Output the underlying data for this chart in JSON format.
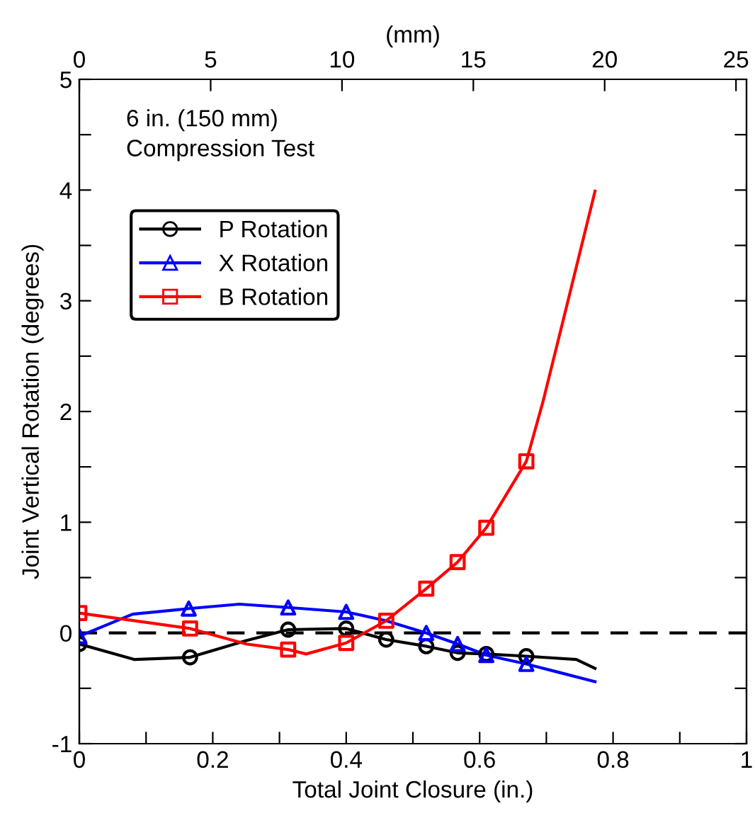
{
  "chart_data": {
    "type": "line",
    "xlabel": "Total Joint Closure (in.)",
    "ylabel": "Joint Vertical Rotation (degrees)",
    "x2label": "(mm)",
    "annotations": [
      "6 in. (150 mm)",
      "Compression Test"
    ],
    "xlim": [
      0,
      1
    ],
    "ylim": [
      -1,
      5
    ],
    "x2lim": [
      0,
      25.4
    ],
    "xticks": [
      0,
      {
        "value": 0.1,
        "label": null
      },
      0.2,
      {
        "value": 0.3,
        "label": null
      },
      0.4,
      {
        "value": 0.5,
        "label": null
      },
      0.6,
      {
        "value": 0.7,
        "label": null
      },
      0.8,
      {
        "value": 0.9,
        "label": null
      },
      1
    ],
    "yticks": [
      -1,
      {
        "value": -0.5,
        "label": null
      },
      0,
      {
        "value": 0.5,
        "label": null
      },
      1,
      {
        "value": 1.5,
        "label": null
      },
      2,
      {
        "value": 2.5,
        "label": null
      },
      3,
      {
        "value": 3.5,
        "label": null
      },
      4,
      {
        "value": 4.5,
        "label": null
      },
      5
    ],
    "x2ticks": [
      0,
      5,
      10,
      15,
      20,
      25
    ],
    "ref_lines": [
      {
        "axis": "y",
        "value": 0,
        "color": "#000000",
        "line_style": "dashed"
      }
    ],
    "grid": false,
    "legend": "top left",
    "series": [
      {
        "color": "#000000",
        "x": [
          0,
          0.083,
          0.166,
          0.25,
          0.313,
          0.4,
          0.46,
          0.52,
          0.567,
          0.61,
          0.67,
          0.745,
          0.773
        ],
        "values": [
          -0.1,
          -0.24,
          -0.22,
          -0.07,
          0.03,
          0.04,
          -0.06,
          -0.12,
          -0.18,
          -0.19,
          -0.21,
          -0.24,
          -0.32
        ]
      },
      {
        "color": "#0000ff",
        "x": [
          0,
          0.08,
          0.164,
          0.24,
          0.313,
          0.4,
          0.46,
          0.52,
          0.567,
          0.61,
          0.67,
          0.715,
          0.773
        ],
        "values": [
          -0.03,
          0.17,
          0.22,
          0.26,
          0.23,
          0.19,
          0.11,
          0.0,
          -0.1,
          -0.2,
          -0.28,
          -0.35,
          -0.44
        ]
      },
      {
        "color": "#ff0000",
        "x": [
          0,
          0.166,
          0.25,
          0.313,
          0.34,
          0.4,
          0.46,
          0.52,
          0.567,
          0.61,
          0.67,
          0.695,
          0.73,
          0.773
        ],
        "values": [
          0.18,
          0.04,
          -0.1,
          -0.15,
          -0.19,
          -0.09,
          0.11,
          0.4,
          0.64,
          0.95,
          1.55,
          2.09,
          2.94,
          3.99
        ]
      },
      {
        "type": "scatter",
        "name": "P Rotation",
        "color": "#000000",
        "marker": "circle",
        "x": [
          0,
          0.166,
          0.313,
          0.4,
          0.46,
          0.52,
          0.567,
          0.61,
          0.67
        ],
        "values": [
          -0.1,
          -0.22,
          0.03,
          0.04,
          -0.06,
          -0.12,
          -0.18,
          -0.19,
          -0.21
        ]
      },
      {
        "type": "scatter",
        "name": "X Rotation",
        "color": "#0000ff",
        "marker": "triangle",
        "x": [
          0,
          0.164,
          0.313,
          0.4,
          0.52,
          0.567,
          0.61,
          0.67
        ],
        "values": [
          -0.03,
          0.22,
          0.23,
          0.19,
          0.0,
          -0.1,
          -0.2,
          -0.28
        ]
      },
      {
        "type": "scatter",
        "name": "B Rotation",
        "color": "#ff0000",
        "marker": "square",
        "x": [
          0,
          0.166,
          0.313,
          0.4,
          0.46,
          0.52,
          0.567,
          0.61,
          0.67
        ],
        "values": [
          0.18,
          0.04,
          -0.15,
          -0.09,
          0.11,
          0.4,
          0.64,
          0.95,
          1.55
        ]
      }
    ]
  }
}
